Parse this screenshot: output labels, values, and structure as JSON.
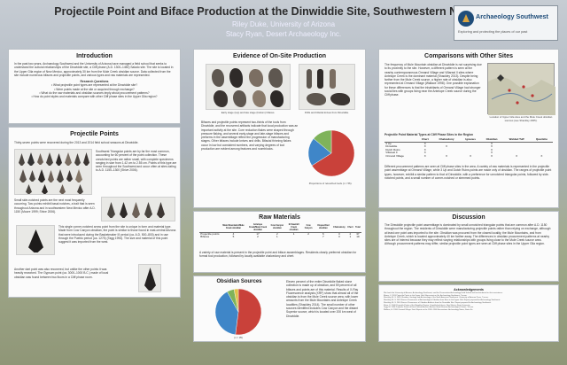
{
  "header": {
    "title": "Projectile Point and Biface Production at the Dinwiddie Site, Southwestern New Mexico",
    "author1": "Riley Duke, University of Arizona",
    "author2": "Stacy Ryan, Desert Archaeology Inc.",
    "logo_name": "Archaeology Southwest",
    "logo_tagline": "Exploring and protecting the places of our past"
  },
  "introduction": {
    "heading": "Introduction",
    "body": "In the past two years, Archaeology Southwest and the University of Arizona have managed a field school that seeks to understand the cultural relationships of the Dinwiddie site, a Cliff phase (A.D. 1300–1450) Salado site. The site is located in the Upper Gila region of New Mexico, approximately 30 km from the Mule Creek obsidian source. Data collected from the site include numerous bifaces and projectile points, and various types and raw materials are represented.",
    "rq_heading": "Research Questions",
    "questions": [
      "• What projectile point types are represented at the Dinwiddie site?",
      "• Were points made at the site or acquired through exchange?",
      "• What do the raw materials and obsidian sources imply about procurement patterns?",
      "• How do point styles and materials compare with other Cliff phase sites in the Upper Gila region?"
    ]
  },
  "projectile_points": {
    "heading": "Projectile Points",
    "lead": "Thirty-seven points were recovered during the 2013 and 2014 field school seasons at Dinwiddie.",
    "p1": "Southwest Triangular points are by far the most common, accounting for 60 percent of the point collection. These unnotched points are rather small, with complete specimens ranging in size from 1.42 cm to 2.55 cm. Points of this type are seen throughout the Southwest and occur often at sites dating to A.D. 1150–1300 (Shive 2006).",
    "p2": "Small side-notched points are the next most frequently occurring. Two points exhibit basal notches, a trait that is seen throughout Arizona and in southwestern New Mexico after A.D. 1150 (Moore 1999; Shive 2006).",
    "p3": "This single corner-notched arrow point from the site is unique in form and material type. Made from Cow Canyon obsidian, the point is similar to those found in east-central Arizona that were introduced during the Basketmaker III period (ca. A.D. 500–800) and in use through the Pueblo period (ca. 1275) (Tagg 1994). The size and material of this point suggest it was imported from the west.",
    "p4": "Another dart point was also recovered, but unlike the other points it was heavily reworked. The Gypsum point (ca. 3000–1000 B.C.) made of local obsidian was found between two floors in a Cliff phase room."
  },
  "evidence": {
    "heading": "Evidence of On-Site Production",
    "cap1": "Early stage (top) and late stage (bottom) bifaces.",
    "cap2": "Drills and bifacial knives from Dinwiddie.",
    "body": "Bifaces and projectile points represent two-thirds of the tools from Dinwiddie, and the recovered artifacts indicate that local production was an important activity at the site. Core reduction flakes were shaped through pressure flaking, and several early-stage and late-stage bifaces and preforms in the assemblage reflect the progression of manufacturing stages. Other bifaces include knives and drills. Bifacial thinning flakes occur in low but consistent numbers, and varying degrees of tool production are evident among features and roomblocks.",
    "pie_caption": "Proportions of retouched tools (n = 56)."
  },
  "raw_materials": {
    "heading": "Raw Materials",
    "columns": [
      "",
      "Mule Mountains/Mule Creek obsidian",
      "Antelope Creek/Mule Creek obsidian",
      "Cow Canyon obsidian",
      "El Sawmill Creek obsidian",
      "Cow Canyon",
      "Unspecified obsidian",
      "Chalcedony",
      "Chert",
      "Total"
    ],
    "rows": [
      [
        "Projectile points",
        "4",
        "17",
        "2",
        "1",
        "2",
        "6",
        "3",
        "2",
        "37"
      ],
      [
        "Bifaces",
        "5",
        "2",
        "1",
        "",
        "",
        "7",
        "3",
        "1",
        "19"
      ]
    ],
    "body": "A variety of raw material is present in the projectile point and biface assemblages. Residents clearly preferred obsidian for formal tool production, followed by locally available chalcedony and chert."
  },
  "obsidian": {
    "heading": "Obsidian Sources",
    "n_label": "(n = 35)",
    "body": "Eleven percent of the entire Dinwiddie flaked stone collection is made up of obsidian, and 59 percent of all bifaces and points are of this material. Results of X-Ray Fluorescence analysis (XRF) show that almost all of the obsidian is from the Mule Creek source area, with lower amounts from the Mule Mountains and Antelope Creek localities (Shackley 2014). The small number of other sources identified includes Cow Canyon and the distant Superior source, which is located over 200 km west of Dinwiddie."
  },
  "comparisons": {
    "heading": "Comparisons with Other Sites",
    "body": "The frequency of Mule Mountain obsidian at Dinwiddie is not surprising due to its proximity to the site. However, a different pattern is seen at the nearby contemporaneous Ormand Village and Villareal II sites where Antelope Creek is the dominant material (Shackley 2013). Despite being farther from the Mule Creek source, a higher rate of obsidian is also represented at Ormand Village (Wallace 1998). One possible explanation for these differences is that the inhabitants of Ormand Village had stronger social ties with groups living near the Antelope Creek source during the Cliff phase.",
    "map_caption": "Location of Upper Gila sites and the Mule Creek obsidian sources (see Shackley 2005).",
    "table_title": "Projectile Point Material Types at Cliff Phase Sites in the Region",
    "columns": [
      "",
      "Chert",
      "Chalcedony",
      "Igneous",
      "Obsidian",
      "Welded Tuff",
      "Quartzite"
    ],
    "rows": [
      [
        "3 Up",
        "X",
        "",
        "",
        "X",
        "",
        ""
      ],
      [
        "Dinwiddie",
        "X",
        "X",
        "",
        "X",
        "",
        ""
      ],
      [
        "Dutch Ruins",
        "X",
        "",
        "",
        "X",
        "",
        ""
      ],
      [
        "Villareal II",
        "X",
        "",
        "",
        "X",
        "",
        ""
      ],
      [
        "Ormand Village",
        "X",
        "X",
        "X",
        "X",
        "X",
        "X"
      ]
    ],
    "note": "Different procurement patterns are seen at Cliff phase sites in the area. A variety of raw materials is represented in the projectile point assemblage at Ormand Village, while 3 Up and Dutch Ruins points are made only of obsidian. The ranges of projectile point types, however, exhibit a similar pattern to that of Dinwiddie, with a preference for unnotched triangular points, followed by side-notched points, and a small number of corner-notched or stemmed points."
  },
  "discussion": {
    "heading": "Discussion",
    "body": "The Dinwiddie projectile point assemblage is dominated by small unnotched triangular points that are common after A.D. 1150 throughout the region. The residents of Dinwiddie were manufacturing projectile points rather than relying on exchange, although at least one point was imported to the site. Obsidian was procured from the closest locality, the Mule Mountains, and from Antelope Creek, which is located approximately 40 km farther away. The differences in obsidian procurement patterns at nearby sites are of interest because they may reflect varying relationships with groups living close to the Mule Creek source area. Although procurement patterns may differ, similar projectile point types are seen at Cliff phase sites in the Upper Gila region."
  },
  "references": {
    "heading": "Acknowledgements",
    "lines": [
      "We thank the University of Arizona, Archaeology Southwest, and the Preservation Archaeology Field School staff and students for their assistance.",
      "Moore, J. 1999 Projectile Points in the Upper Gila. Manuscript on file, Archaeology Southwest, Tucson.",
      "Shackley, M. S. 2005 Obsidian: Geology and Archaeology in the North American Southwest. University of Arizona Press, Tucson.",
      "Shackley, M. S. 2013 Source Provenance of Archaeological Obsidian from Sites in the Upper Gila. Report prepared for Archaeology Southwest.",
      "Shackley, M. S. 2014 Source Provenance of Obsidian Artifacts from the Dinwiddie Site. Report prepared for Archaeology Southwest.",
      "Shive, D. 2006 Projectile Points of the Mogollon Region. Unpublished thesis, New Mexico State University.",
      "Tagg, M. 1994 Projectile Points of East-Central Arizona. Arizona State Museum Archaeological Series, Tucson.",
      "Wallace, H. 1998 Ormand Village: Final Report on the 1965–1966 Excavations. Archaeology Notes, Santa Fe."
    ]
  },
  "chart_data": [
    {
      "type": "pie",
      "title": "",
      "categories": [
        "Projectile points",
        "Bifaces",
        "Other tools"
      ],
      "values": [
        66,
        20,
        14
      ],
      "colors": [
        "#c9413a",
        "#3f86c8",
        "#7fb35a"
      ]
    },
    {
      "type": "pie",
      "title": "",
      "categories": [
        "Mule Mountains",
        "Antelope Creek",
        "Cow Canyon",
        "Other"
      ],
      "values": [
        52,
        40,
        5,
        3
      ],
      "colors": [
        "#c9413a",
        "#3f86c8",
        "#7fb35a",
        "#e0c048"
      ]
    }
  ]
}
